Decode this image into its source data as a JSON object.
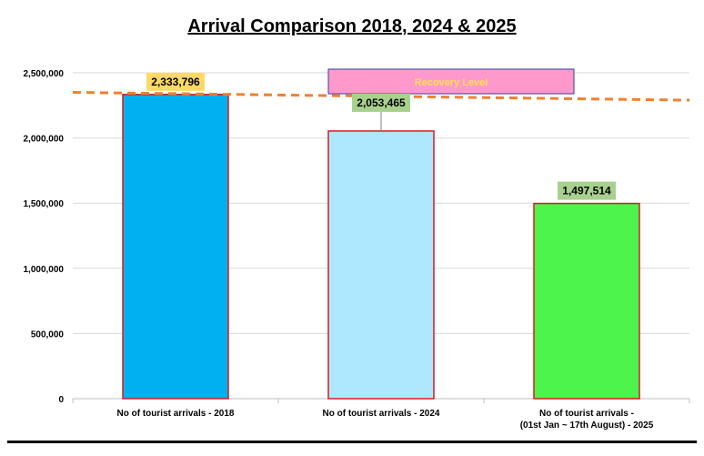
{
  "chart_data": {
    "type": "bar",
    "title": "Arrival Comparison 2018, 2024 & 2025",
    "categories": [
      [
        "No of tourist arrivals - 2018"
      ],
      [
        "No of tourist arrivals - 2024"
      ],
      [
        "No of tourist arrivals -",
        "(01st  Jan ~ 17th August) - 2025"
      ]
    ],
    "values": [
      2333796,
      2053465,
      1497514
    ],
    "value_labels": [
      "2,333,796",
      "2,053,465",
      "1,497,514"
    ],
    "bar_colors": [
      "#00b0f0",
      "#aee8ff",
      "#4cf44c"
    ],
    "bar_border_color": "#d91c1c",
    "label_box_colors": [
      "#ffd966",
      "#a9d18e",
      "#a9d18e"
    ],
    "ylim": [
      0,
      2500000
    ],
    "yticks": [
      0,
      500000,
      1000000,
      1500000,
      2000000,
      2500000
    ],
    "ytick_labels": [
      "0",
      "500,000",
      "1,000,000",
      "1,500,000",
      "2,000,000",
      "2,500,000"
    ],
    "grid": true,
    "trend_line": {
      "style": "dashed",
      "color": "#f08030",
      "y_start": 2350000,
      "y_end": 2290000
    },
    "annotation": {
      "text": "Recovery Level",
      "fill": "#ff99cc",
      "text_color": "#ffe14d",
      "border": "#3a3aa0"
    }
  }
}
